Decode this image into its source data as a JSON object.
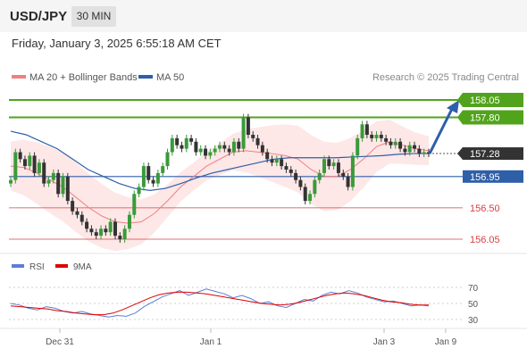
{
  "header": {
    "symbol": "USD/JPY",
    "timeframe": "30 MIN",
    "datetime": "Friday, January 3, 2025 6:55:18 AM CET"
  },
  "legend": {
    "ma20_label": "MA 20 + Bollinger Bands",
    "ma50_label": "MA 50",
    "copyright": "Research © 2025 Trading Central",
    "colors": {
      "ma20": "#f08080",
      "ma50": "#2f5fa8",
      "band": "#fde3e3"
    }
  },
  "rsi_legend": {
    "rsi_label": "RSI",
    "ma_label": "9MA",
    "colors": {
      "rsi": "#5b7fd6",
      "ma": "#e00000"
    }
  },
  "chart_data": [
    {
      "type": "line",
      "title": "",
      "x_tick_labels": [
        "Dec 31",
        "Jan 1",
        "Jan 3",
        "Jan 9"
      ],
      "ylim": [
        155.9,
        158.35
      ],
      "price_levels": [
        {
          "value": 158.05,
          "label": "158.05",
          "kind": "resistance",
          "color": "#52a31c"
        },
        {
          "value": 157.8,
          "label": "157.80",
          "kind": "resistance",
          "color": "#52a31c"
        },
        {
          "value": 157.28,
          "label": "157.28",
          "kind": "last",
          "color": "#333333"
        },
        {
          "value": 156.95,
          "label": "156.95",
          "kind": "pivot",
          "color": "#2f5fa8"
        },
        {
          "value": 156.5,
          "label": "156.50",
          "kind": "support",
          "color": "#d94040"
        },
        {
          "value": 156.05,
          "label": "156.05",
          "kind": "support",
          "color": "#d94040"
        }
      ],
      "series": [
        {
          "name": "Price",
          "values": [
            156.9,
            157.3,
            157.2,
            157.1,
            157.25,
            157.0,
            157.15,
            156.85,
            156.9,
            157.0,
            156.7,
            156.95,
            156.6,
            156.45,
            156.4,
            156.3,
            156.2,
            156.15,
            156.1,
            156.2,
            156.15,
            156.3,
            156.1,
            156.05,
            156.2,
            156.4,
            156.7,
            156.8,
            157.1,
            156.9,
            156.85,
            157.0,
            157.1,
            157.3,
            157.5,
            157.4,
            157.35,
            157.5,
            157.45,
            157.3,
            157.35,
            157.25,
            157.3,
            157.35,
            157.4,
            157.35,
            157.3,
            157.45,
            157.35,
            157.8,
            157.55,
            157.5,
            157.4,
            157.3,
            157.2,
            157.15,
            157.2,
            157.1,
            157.05,
            157.0,
            156.9,
            156.8,
            156.6,
            156.7,
            156.9,
            157.0,
            157.2,
            157.1,
            157.15,
            157.0,
            156.95,
            156.8,
            157.25,
            157.5,
            157.7,
            157.55,
            157.5,
            157.55,
            157.5,
            157.45,
            157.4,
            157.45,
            157.35,
            157.3,
            157.4,
            157.35,
            157.28,
            157.3,
            157.28
          ]
        },
        {
          "name": "MA 20",
          "values": [
            157.1,
            157.08,
            157.0,
            156.9,
            156.8,
            156.65,
            156.5,
            156.38,
            156.3,
            156.28,
            156.3,
            156.42,
            156.6,
            156.8,
            156.95,
            157.1,
            157.2,
            157.3,
            157.32,
            157.3,
            157.28,
            157.25,
            157.2,
            157.05,
            156.95,
            156.95,
            157.05,
            157.2,
            157.38,
            157.45,
            157.4,
            157.35,
            157.32
          ]
        },
        {
          "name": "MA 50",
          "values": [
            157.6,
            157.55,
            157.45,
            157.35,
            157.2,
            157.05,
            156.95,
            156.85,
            156.78,
            156.75,
            156.78,
            156.85,
            156.93,
            157.0,
            157.05,
            157.1,
            157.15,
            157.2,
            157.22,
            157.22,
            157.22,
            157.22,
            157.23,
            157.24,
            157.25,
            157.27,
            157.28,
            157.28
          ]
        }
      ]
    },
    {
      "type": "line",
      "title": "",
      "yticks": [
        30,
        50,
        70
      ],
      "ylim": [
        20,
        80
      ],
      "series": [
        {
          "name": "RSI",
          "values": [
            50,
            48,
            44,
            42,
            46,
            44,
            40,
            38,
            40,
            37,
            35,
            33,
            35,
            34,
            38,
            46,
            52,
            58,
            62,
            66,
            60,
            64,
            68,
            65,
            62,
            57,
            60,
            56,
            50,
            52,
            47,
            45,
            50,
            55,
            53,
            60,
            64,
            62,
            66,
            63,
            58,
            55,
            52,
            53,
            50,
            47,
            48,
            47
          ]
        },
        {
          "name": "9MA",
          "values": [
            47,
            46,
            45,
            44,
            43,
            41,
            40,
            38,
            37,
            36,
            36,
            38,
            42,
            47,
            52,
            57,
            61,
            63,
            64,
            64,
            63,
            62,
            60,
            58,
            56,
            54,
            52,
            50,
            49,
            48,
            49,
            51,
            54,
            57,
            60,
            62,
            63,
            62,
            60,
            57,
            54,
            52,
            51,
            49,
            48,
            48
          ]
        }
      ]
    }
  ]
}
